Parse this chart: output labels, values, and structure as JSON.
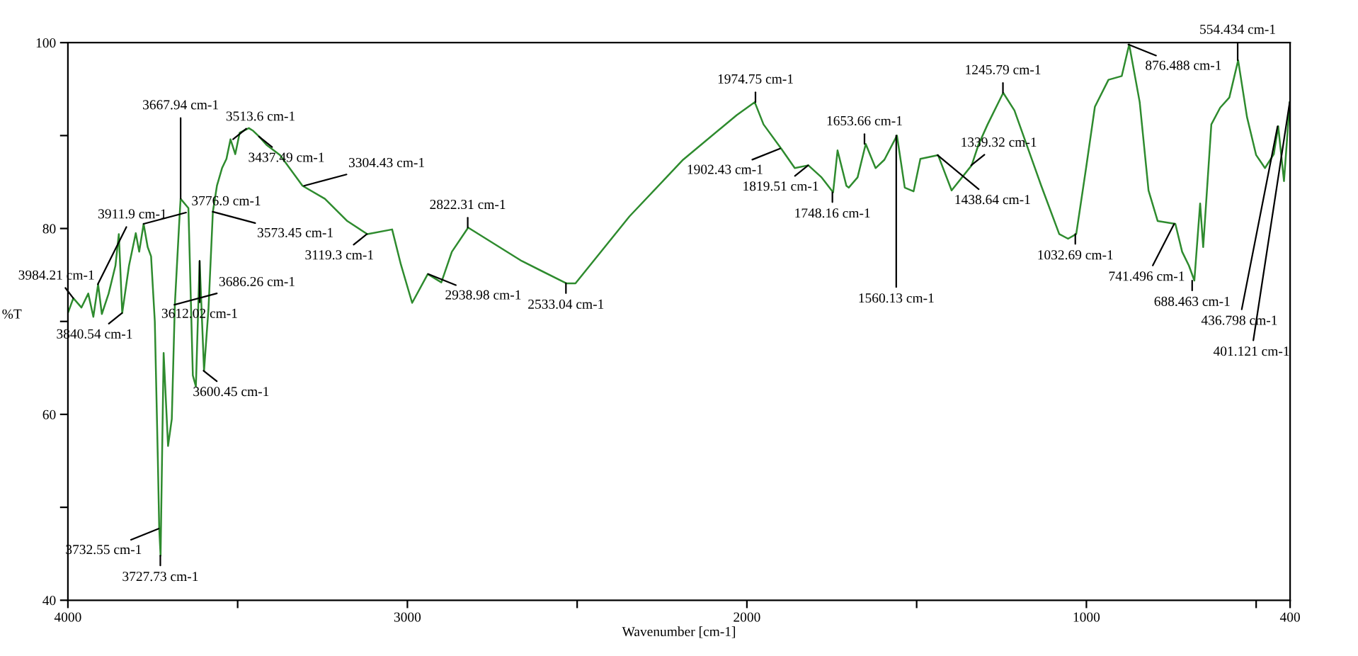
{
  "chart_data": {
    "type": "line",
    "xlabel": "Wavenumber [cm-1]",
    "ylabel": "%T",
    "xlim": [
      4000,
      400
    ],
    "ylim": [
      40,
      100
    ],
    "xticks": [
      4000,
      {
        "value": 3500,
        "label": null
      },
      3000,
      {
        "value": 2500,
        "label": null
      },
      2000,
      {
        "value": 1500,
        "label": null
      },
      1000,
      {
        "value": 500,
        "label": null
      },
      400
    ],
    "yticks": [
      40,
      {
        "value": 50,
        "label": null
      },
      60,
      {
        "value": 70,
        "label": null
      },
      80,
      {
        "value": 90,
        "label": null
      },
      100
    ],
    "grid": false,
    "legend": false,
    "marker": "none",
    "line_style": "solid",
    "series": [
      {
        "color": "#2e8b2e",
        "x": [
          4000,
          3984,
          3960,
          3940,
          3925,
          3911,
          3900,
          3880,
          3860,
          3850,
          3840,
          3820,
          3800,
          3790,
          3777,
          3765,
          3755,
          3744,
          3735,
          3731,
          3727,
          3718,
          3705,
          3694,
          3685,
          3672,
          3668,
          3645,
          3632,
          3623,
          3612,
          3599,
          3586,
          3573,
          3561,
          3546,
          3533,
          3521,
          3507,
          3494,
          3467,
          3454,
          3437,
          3415,
          3375,
          3309,
          3243,
          3177,
          3118,
          3045,
          3019,
          2986,
          2940,
          2900,
          2869,
          2821,
          2663,
          2532,
          2505,
          2346,
          2188,
          2030,
          1977,
          1951,
          1899,
          1859,
          1819,
          1780,
          1746,
          1733,
          1707,
          1700,
          1674,
          1650,
          1621,
          1595,
          1558,
          1535,
          1509,
          1489,
          1437,
          1397,
          1338,
          1318,
          1291,
          1245,
          1212,
          1133,
          1080,
          1054,
          1030,
          1001,
          975,
          935,
          896,
          874,
          843,
          817,
          790,
          738,
          718,
          698,
          682,
          665,
          656,
          632,
          606,
          579,
          553,
          527,
          500,
          474,
          448,
          435,
          418,
          401
        ],
        "values": [
          70.9,
          72.5,
          71.5,
          73.0,
          70.5,
          74.0,
          70.8,
          73.0,
          76.0,
          79.4,
          70.9,
          76.0,
          79.5,
          77.5,
          80.5,
          78.0,
          77.0,
          70.0,
          55.0,
          47.7,
          44.8,
          66.6,
          56.6,
          59.5,
          71.8,
          80.7,
          83.2,
          82.2,
          64.2,
          63.0,
          76.5,
          64.7,
          71.3,
          81.8,
          84.6,
          86.5,
          87.5,
          89.6,
          88.0,
          90.3,
          90.8,
          90.5,
          89.9,
          89.0,
          87.9,
          84.6,
          83.2,
          80.8,
          79.4,
          79.9,
          76.1,
          72.0,
          75.1,
          74.2,
          77.5,
          80.1,
          76.5,
          74.1,
          74.1,
          81.3,
          87.4,
          92.2,
          93.6,
          91.2,
          88.6,
          86.5,
          86.8,
          85.5,
          83.9,
          88.4,
          84.6,
          84.4,
          85.5,
          89.1,
          86.5,
          87.4,
          90.0,
          84.4,
          84.0,
          87.5,
          87.9,
          84.1,
          86.8,
          89.0,
          91.2,
          94.6,
          92.7,
          84.6,
          79.4,
          78.9,
          79.4,
          86.5,
          93.1,
          96.0,
          96.4,
          99.8,
          93.6,
          84.1,
          80.8,
          80.5,
          77.5,
          76.0,
          74.4,
          82.7,
          78.0,
          91.2,
          93.0,
          94.1,
          98.1,
          92.0,
          87.9,
          86.5,
          88.0,
          91.0,
          85.1,
          93.6
        ]
      }
    ],
    "annotations": [
      {
        "text": "3984.21 cm-1",
        "x": 3984.21,
        "y": 72.5
      },
      {
        "text": "3911.9 cm-1",
        "x": 3911.9,
        "y": 74.0
      },
      {
        "text": "3840.54 cm-1",
        "x": 3840.54,
        "y": 70.9
      },
      {
        "text": "3776.9 cm-1",
        "x": 3776.9,
        "y": 80.5
      },
      {
        "text": "3732.55 cm-1",
        "x": 3732.55,
        "y": 47.7
      },
      {
        "text": "3727.73 cm-1",
        "x": 3727.73,
        "y": 44.8
      },
      {
        "text": "3686.26 cm-1",
        "x": 3686.26,
        "y": 71.8
      },
      {
        "text": "3667.94 cm-1",
        "x": 3667.94,
        "y": 83.2
      },
      {
        "text": "3612.02 cm-1",
        "x": 3612.02,
        "y": 76.5
      },
      {
        "text": "3600.45 cm-1",
        "x": 3600.45,
        "y": 64.7
      },
      {
        "text": "3573.45 cm-1",
        "x": 3573.45,
        "y": 81.8
      },
      {
        "text": "3513.6 cm-1",
        "x": 3513.6,
        "y": 89.6
      },
      {
        "text": "3437.49 cm-1",
        "x": 3437.49,
        "y": 89.9
      },
      {
        "text": "3304.43 cm-1",
        "x": 3304.43,
        "y": 84.6
      },
      {
        "text": "3119.3 cm-1",
        "x": 3119.3,
        "y": 79.4
      },
      {
        "text": "2938.98 cm-1",
        "x": 2938.98,
        "y": 75.1
      },
      {
        "text": "2822.31 cm-1",
        "x": 2822.31,
        "y": 80.1
      },
      {
        "text": "2533.04 cm-1",
        "x": 2533.04,
        "y": 74.1
      },
      {
        "text": "1974.75 cm-1",
        "x": 1974.75,
        "y": 93.6
      },
      {
        "text": "1902.43 cm-1",
        "x": 1902.43,
        "y": 88.6
      },
      {
        "text": "1819.51 cm-1",
        "x": 1819.51,
        "y": 86.8
      },
      {
        "text": "1748.16 cm-1",
        "x": 1748.16,
        "y": 83.9
      },
      {
        "text": "1653.66 cm-1",
        "x": 1653.66,
        "y": 89.1
      },
      {
        "text": "1560.13 cm-1",
        "x": 1560.13,
        "y": 90.0
      },
      {
        "text": "1438.64 cm-1",
        "x": 1438.64,
        "y": 87.9
      },
      {
        "text": "1339.32 cm-1",
        "x": 1339.32,
        "y": 86.8
      },
      {
        "text": "1245.79 cm-1",
        "x": 1245.79,
        "y": 94.6
      },
      {
        "text": "1032.69 cm-1",
        "x": 1032.69,
        "y": 79.4
      },
      {
        "text": "876.488 cm-1",
        "x": 876.488,
        "y": 99.8
      },
      {
        "text": "741.496 cm-1",
        "x": 741.496,
        "y": 80.5
      },
      {
        "text": "688.463 cm-1",
        "x": 688.463,
        "y": 74.4
      },
      {
        "text": "554.434 cm-1",
        "x": 554.434,
        "y": 98.1
      },
      {
        "text": "436.798 cm-1",
        "x": 436.798,
        "y": 91.0
      },
      {
        "text": "401.121 cm-1",
        "x": 401.121,
        "y": 93.6
      }
    ]
  }
}
